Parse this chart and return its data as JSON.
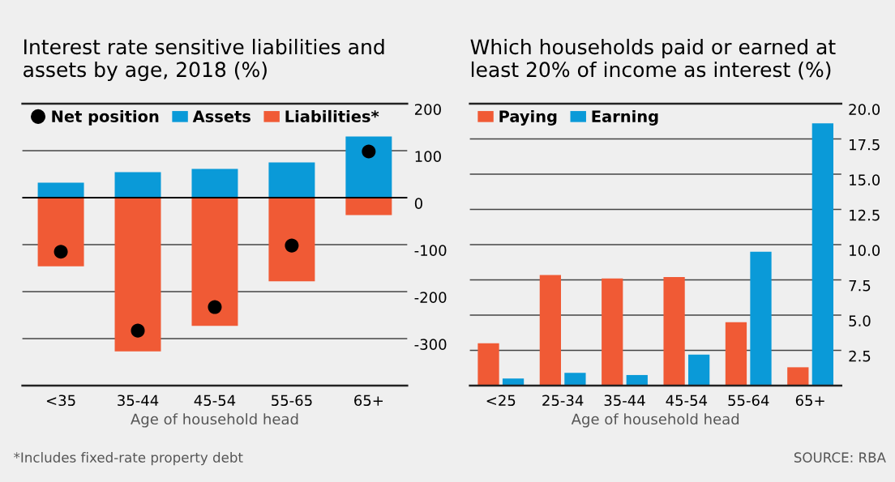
{
  "chart_data": [
    {
      "type": "bar",
      "title": "Interest rate sensitive liabilities and assets by age, 2018 (%)",
      "xlabel": "Age of household head",
      "categories": [
        "<35",
        "35-44",
        "45-54",
        "55-65",
        "65+"
      ],
      "stacked": true,
      "series": [
        {
          "name": "Net position",
          "type": "scatter",
          "color": "#000000",
          "x": [
            "<35",
            "35-44",
            "45-54",
            "55-65",
            "65+"
          ],
          "values": [
            -115,
            -283,
            -233,
            -102,
            98
          ]
        },
        {
          "name": "Assets",
          "color": "#0a9ad8",
          "values": [
            32,
            54,
            61,
            75,
            130
          ]
        },
        {
          "name": "Liabilities*",
          "color": "#f05a35",
          "values": [
            -146,
            -327,
            -273,
            -178,
            -37
          ]
        }
      ],
      "ylim": [
        -400,
        200
      ],
      "yticks": [
        200,
        100,
        0,
        {
          "value": -100,
          "label": "-100"
        },
        {
          "value": -200,
          "label": "-200"
        },
        {
          "value": -300,
          "label": "-300"
        }
      ],
      "ref_lines": [
        {
          "axis": "y",
          "value": 0,
          "color": "#000000"
        }
      ],
      "grid": "y",
      "legend": "top left",
      "marker": "circle",
      "annotations": [
        "*Includes fixed-rate property debt"
      ]
    },
    {
      "type": "bar",
      "title": "Which households paid or earned at least 20% of income as interest (%)",
      "xlabel": "Age of household head",
      "categories": [
        "<25",
        "25-34",
        "35-44",
        "45-54",
        "55-64",
        "65+"
      ],
      "series": [
        {
          "name": "Paying",
          "color": "#f05a35",
          "values": [
            3.0,
            7.85,
            7.6,
            7.7,
            4.5,
            1.3
          ]
        },
        {
          "name": "Earning",
          "color": "#0a9ad8",
          "values": [
            0.5,
            0.9,
            0.75,
            2.2,
            9.5,
            18.6
          ]
        }
      ],
      "ylim": [
        0,
        20
      ],
      "yticks": [
        {
          "value": 2.5,
          "label": "2.5"
        },
        {
          "value": 5,
          "label": "5.0"
        },
        {
          "value": 7.5,
          "label": "7.5"
        },
        {
          "value": 10,
          "label": "10.0"
        },
        {
          "value": 12.5,
          "label": "12.5"
        },
        {
          "value": 15,
          "label": "15.0"
        },
        {
          "value": 17.5,
          "label": "17.5"
        },
        {
          "value": 20,
          "label": "20.0"
        }
      ],
      "grid": "y",
      "legend": "top left",
      "annotations": [
        "SOURCE: RBA"
      ]
    }
  ]
}
